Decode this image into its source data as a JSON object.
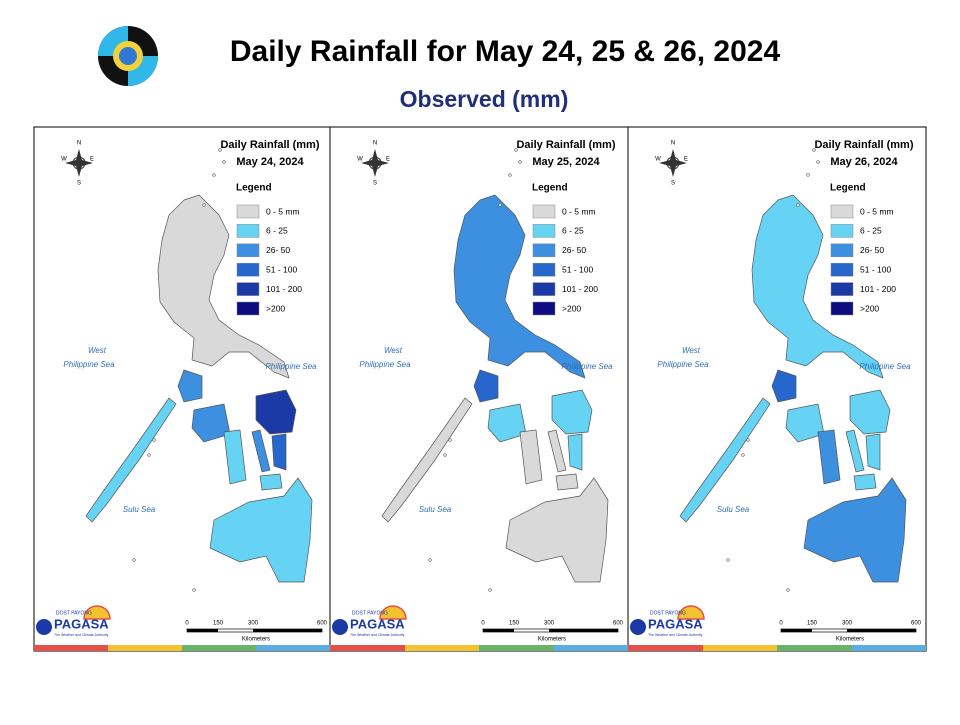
{
  "header": {
    "title": "Daily Rainfall for May 24, 25 & 26, 2024",
    "subtitle": "Observed (mm)"
  },
  "map": {
    "heading": "Daily Rainfall (mm)",
    "legend_title": "Legend",
    "legend": [
      {
        "label": "0 - 5 mm",
        "color": "#d9d9d9"
      },
      {
        "label": "6 - 25",
        "color": "#66d3f5"
      },
      {
        "label": "26- 50",
        "color": "#3d8fe0"
      },
      {
        "label": "51 - 100",
        "color": "#2766cc"
      },
      {
        "label": "101 - 200",
        "color": "#1c3aa6"
      },
      {
        "label": ">200",
        "color": "#0d0d80"
      }
    ],
    "compass": {
      "n": "N",
      "e": "E",
      "s": "S",
      "w": "W"
    },
    "seas": {
      "west_1": "West",
      "west_2": "Philippine Sea",
      "east": "Philippine Sea",
      "south": "Sulu Sea"
    },
    "scale": {
      "ticks": [
        "0",
        "150",
        "300",
        "600"
      ],
      "unit": "Kilometers"
    },
    "logo": {
      "top": "DOST   PAYONG",
      "name": "PAGASA",
      "tagline": "The Weather and Climate Authority"
    }
  },
  "panels": [
    {
      "date": "May 24, 2024"
    },
    {
      "date": "May 25, 2024"
    },
    {
      "date": "May 26, 2024"
    }
  ]
}
